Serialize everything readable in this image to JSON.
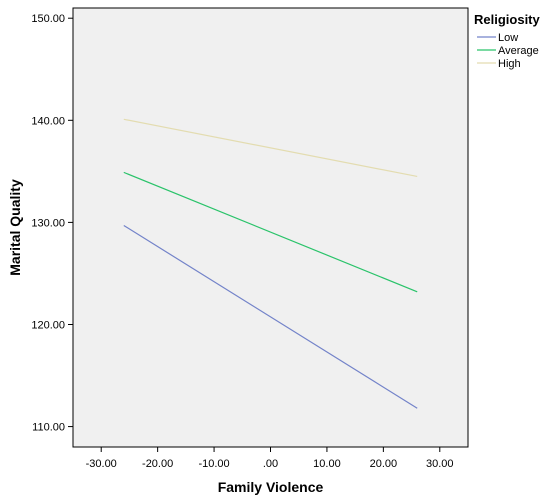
{
  "chart_data": {
    "type": "line",
    "xlabel": "Family Violence",
    "ylabel": "Marital Quality",
    "xlim": [
      -35,
      35
    ],
    "ylim": [
      108,
      151
    ],
    "x_ticks": [
      -30,
      -20,
      -10,
      0,
      10,
      20,
      30
    ],
    "x_tick_labels": [
      "-30.00",
      "-20.00",
      "-10.00",
      ".00",
      "10.00",
      "20.00",
      "30.00"
    ],
    "y_ticks": [
      110,
      120,
      130,
      140,
      150
    ],
    "y_tick_labels": [
      "110.00",
      "120.00",
      "130.00",
      "140.00",
      "150.00"
    ],
    "grid": false,
    "legend": {
      "title": "Religiosity",
      "placement": "top-right-outside"
    },
    "series": [
      {
        "name": "Low",
        "color": "#7383c9",
        "x": [
          -26,
          26
        ],
        "y": [
          129.7,
          111.8
        ]
      },
      {
        "name": "Average",
        "color": "#2ac36a",
        "x": [
          -26,
          26
        ],
        "y": [
          134.9,
          123.2
        ]
      },
      {
        "name": "High",
        "color": "#e3dcb0",
        "x": [
          -26,
          26
        ],
        "y": [
          140.1,
          134.5
        ]
      }
    ],
    "plot_background": "#f0f0f0"
  }
}
